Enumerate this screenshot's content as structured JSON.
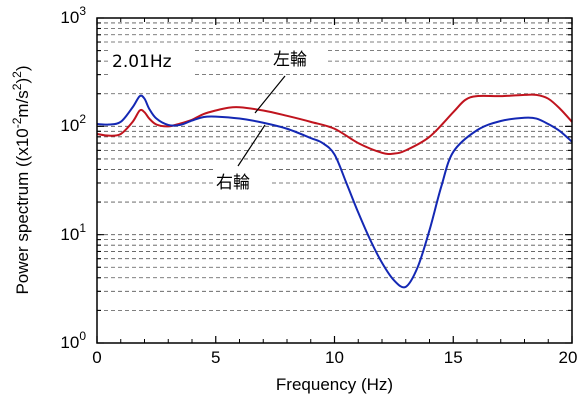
{
  "chart_data": {
    "type": "line",
    "xlabel": "Frequency (Hz)",
    "ylabel_parts": {
      "base": "Power spectrum ((x10",
      "exp1": "-2",
      "mid": "m/s",
      "exp2": "2",
      "end": ")",
      "exp3": "2",
      "close": ")"
    },
    "xlim": [
      0,
      20
    ],
    "ylim": [
      1,
      1000
    ],
    "yscale": "log",
    "grid": "horizontal dashed",
    "x_ticks": [
      {
        "value": 0,
        "label": "0"
      },
      {
        "value": 5,
        "label": "5"
      },
      {
        "value": 10,
        "label": "10"
      },
      {
        "value": 15,
        "label": "15"
      },
      {
        "value": 20,
        "label": "20"
      }
    ],
    "y_ticks": [
      {
        "value": 1,
        "base": "10",
        "exp": "0"
      },
      {
        "value": 10,
        "base": "10",
        "exp": "1"
      },
      {
        "value": 100,
        "base": "10",
        "exp": "2"
      },
      {
        "value": 1000,
        "base": "10",
        "exp": "3"
      }
    ],
    "annotations": {
      "peak_label": "2.01Hz",
      "left_wheel": "左輪",
      "right_wheel": "右輪"
    },
    "series": [
      {
        "name": "左輪",
        "color": "#c0141e",
        "x": [
          0,
          0.5,
          1.0,
          1.5,
          1.8,
          2.0,
          2.2,
          2.5,
          3.0,
          3.5,
          4.0,
          4.5,
          5.0,
          5.5,
          6.0,
          7.0,
          8.0,
          9.0,
          10.0,
          11.0,
          12.0,
          12.5,
          13.0,
          14.0,
          15.0,
          15.5,
          16.0,
          17.0,
          18.0,
          18.5,
          19.0,
          19.5,
          20.0
        ],
        "y": [
          85,
          82,
          85,
          110,
          140,
          135,
          118,
          104,
          100,
          106,
          115,
          130,
          140,
          148,
          150,
          140,
          125,
          110,
          95,
          70,
          57,
          56,
          60,
          80,
          135,
          175,
          190,
          190,
          195,
          195,
          180,
          145,
          110
        ]
      },
      {
        "name": "右輪",
        "color": "#1428b4",
        "x": [
          0,
          0.5,
          1.0,
          1.5,
          1.8,
          2.0,
          2.2,
          2.5,
          3.0,
          3.5,
          4.0,
          4.5,
          5.0,
          6.0,
          7.0,
          8.0,
          9.0,
          9.5,
          10.0,
          10.5,
          11.0,
          11.5,
          12.0,
          12.5,
          13.0,
          13.5,
          14.0,
          14.5,
          15.0,
          16.0,
          17.0,
          18.0,
          18.5,
          19.0,
          19.5,
          20.0
        ],
        "y": [
          105,
          104,
          110,
          150,
          190,
          180,
          145,
          118,
          103,
          103,
          113,
          122,
          123,
          118,
          108,
          95,
          78,
          70,
          55,
          30,
          16,
          9,
          5.5,
          3.8,
          3.3,
          5,
          11,
          28,
          58,
          92,
          112,
          120,
          118,
          105,
          90,
          72
        ]
      }
    ]
  }
}
